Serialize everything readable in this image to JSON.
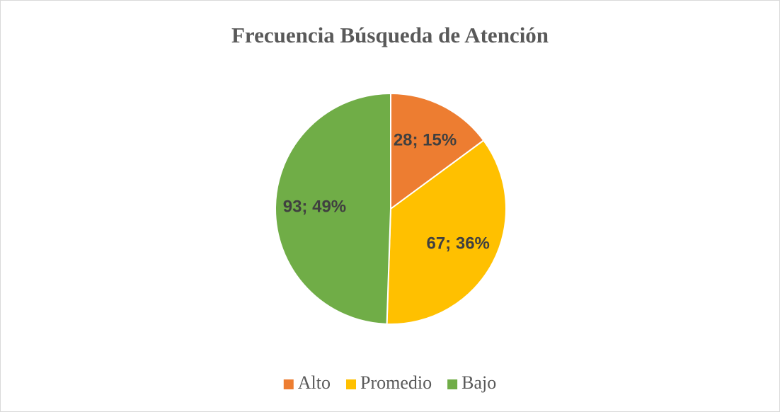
{
  "chart_data": {
    "type": "pie",
    "title": "Frecuencia Búsqueda de Atención",
    "categories": [
      "Alto",
      "Promedio",
      "Bajo"
    ],
    "values": [
      28,
      67,
      93
    ],
    "value_labels": [
      "28; 15%",
      "67; 36%",
      "93; 49%"
    ],
    "colors": [
      "#ED7D31",
      "#FFC000",
      "#70AD47"
    ],
    "legend": "bottom"
  }
}
